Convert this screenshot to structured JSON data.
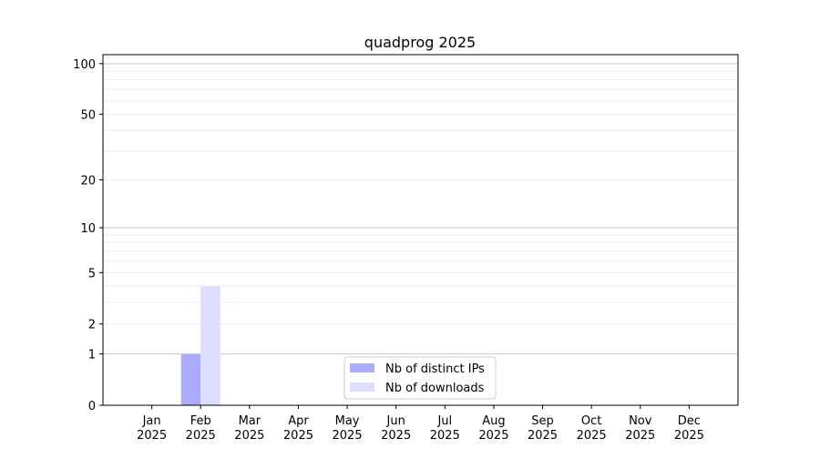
{
  "chart_data": {
    "type": "bar",
    "title": "quadprog 2025",
    "xlabel": "",
    "ylabel": "",
    "yscale": "log(1+y)",
    "ylim": [
      0,
      113
    ],
    "grid": true,
    "legend_position": "lower-center",
    "categories": [
      "Jan\n2025",
      "Feb\n2025",
      "Mar\n2025",
      "Apr\n2025",
      "May\n2025",
      "Jun\n2025",
      "Jul\n2025",
      "Aug\n2025",
      "Sep\n2025",
      "Oct\n2025",
      "Nov\n2025",
      "Dec\n2025"
    ],
    "yticks": [
      0,
      1,
      2,
      5,
      10,
      20,
      50,
      100
    ],
    "series": [
      {
        "name": "Nb of distinct IPs",
        "color": "#aaaaff",
        "values": [
          0,
          1,
          0,
          0,
          0,
          0,
          0,
          0,
          0,
          0,
          0,
          0
        ]
      },
      {
        "name": "Nb of downloads",
        "color": "#ddddff",
        "values": [
          0,
          4,
          0,
          0,
          0,
          0,
          0,
          0,
          0,
          0,
          0,
          0
        ]
      }
    ]
  }
}
